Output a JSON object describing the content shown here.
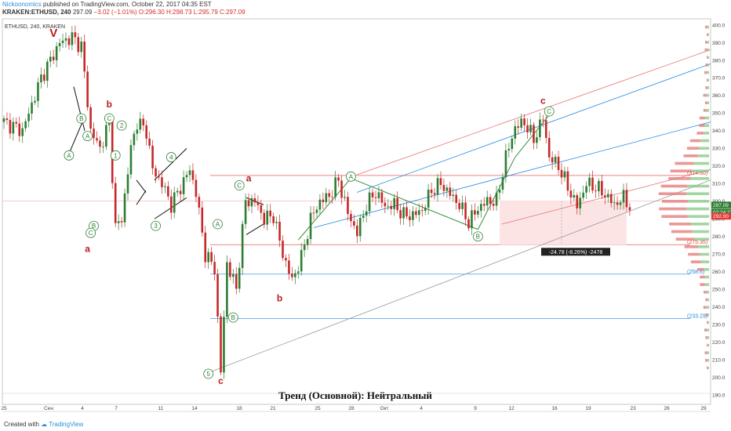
{
  "header": {
    "author": "Nickoonomics",
    "published": "published on TradingView.com, October 22, 2017 04:35 EST",
    "symbol_line": "KRAKEN:ETHUSD, 240",
    "last": "297.09",
    "change": "−3.02 (−1.01%)",
    "ohlc": "O:296.30 H:298.73 L:295.79 C:297.09"
  },
  "chart_label": "ETHUSD, 240, KRAKEN",
  "trend_text": "Тренд (Основной): Нейтральный",
  "footer": {
    "created": "Created with",
    "brand": "TradingView"
  },
  "colors": {
    "up": "#2e7d32",
    "down": "#c62828",
    "wave_label": "#b71c1c",
    "channel_blue": "#1e88e5",
    "channel_red": "#e57373"
  },
  "chart_data": {
    "type": "candlestick",
    "title": "",
    "ylim": [
      190,
      400
    ],
    "y_ticks": [
      190,
      200,
      210,
      220,
      230,
      240,
      250,
      260,
      270,
      280,
      290,
      300,
      310,
      320,
      330,
      340,
      350,
      360,
      370,
      380,
      390,
      400
    ],
    "x_ticks": [
      "25",
      "Сен",
      "4",
      "7",
      "11",
      "14",
      "18",
      "21",
      "25",
      "28",
      "Окт",
      "4",
      "9",
      "12",
      "16",
      "19",
      "23",
      "26",
      "29"
    ],
    "close_path": [
      {
        "i": 0,
        "c": 345
      },
      {
        "i": 6,
        "c": 340
      },
      {
        "i": 12,
        "c": 370
      },
      {
        "i": 18,
        "c": 390
      },
      {
        "i": 22,
        "c": 393
      },
      {
        "i": 25,
        "c": 388
      },
      {
        "i": 28,
        "c": 340
      },
      {
        "i": 31,
        "c": 330
      },
      {
        "i": 34,
        "c": 345
      },
      {
        "i": 36,
        "c": 285
      },
      {
        "i": 38,
        "c": 290
      },
      {
        "i": 41,
        "c": 330
      },
      {
        "i": 43,
        "c": 345
      },
      {
        "i": 46,
        "c": 340
      },
      {
        "i": 48,
        "c": 318
      },
      {
        "i": 51,
        "c": 310
      },
      {
        "i": 54,
        "c": 298
      },
      {
        "i": 57,
        "c": 308
      },
      {
        "i": 60,
        "c": 318
      },
      {
        "i": 62,
        "c": 305
      },
      {
        "i": 65,
        "c": 270
      },
      {
        "i": 68,
        "c": 262
      },
      {
        "i": 70,
        "c": 203
      },
      {
        "i": 72,
        "c": 265
      },
      {
        "i": 75,
        "c": 250
      },
      {
        "i": 78,
        "c": 300
      },
      {
        "i": 81,
        "c": 300
      },
      {
        "i": 84,
        "c": 290
      },
      {
        "i": 87,
        "c": 292
      },
      {
        "i": 90,
        "c": 270
      },
      {
        "i": 93,
        "c": 255
      },
      {
        "i": 96,
        "c": 268
      },
      {
        "i": 99,
        "c": 290
      },
      {
        "i": 102,
        "c": 300
      },
      {
        "i": 105,
        "c": 303
      },
      {
        "i": 108,
        "c": 312
      },
      {
        "i": 111,
        "c": 293
      },
      {
        "i": 114,
        "c": 282
      },
      {
        "i": 117,
        "c": 298
      },
      {
        "i": 120,
        "c": 305
      },
      {
        "i": 123,
        "c": 297
      },
      {
        "i": 126,
        "c": 298
      },
      {
        "i": 129,
        "c": 292
      },
      {
        "i": 132,
        "c": 292
      },
      {
        "i": 135,
        "c": 295
      },
      {
        "i": 138,
        "c": 306
      },
      {
        "i": 141,
        "c": 310
      },
      {
        "i": 144,
        "c": 304
      },
      {
        "i": 147,
        "c": 298
      },
      {
        "i": 150,
        "c": 288
      },
      {
        "i": 153,
        "c": 296
      },
      {
        "i": 156,
        "c": 300
      },
      {
        "i": 159,
        "c": 300
      },
      {
        "i": 162,
        "c": 325
      },
      {
        "i": 165,
        "c": 342
      },
      {
        "i": 168,
        "c": 345
      },
      {
        "i": 171,
        "c": 335
      },
      {
        "i": 174,
        "c": 347
      },
      {
        "i": 176,
        "c": 325
      },
      {
        "i": 179,
        "c": 320
      },
      {
        "i": 182,
        "c": 308
      },
      {
        "i": 185,
        "c": 297
      },
      {
        "i": 188,
        "c": 310
      },
      {
        "i": 191,
        "c": 308
      },
      {
        "i": 194,
        "c": 304
      },
      {
        "i": 197,
        "c": 298
      },
      {
        "i": 200,
        "c": 302
      },
      {
        "i": 202,
        "c": 297
      }
    ],
    "price_lines": [
      {
        "label": "(314.60)",
        "value": 314.6,
        "color": "#e53935"
      },
      {
        "label": "(275.35)",
        "value": 275.35,
        "color": "#e53935"
      },
      {
        "label": "(258.6)",
        "value": 258.6,
        "color": "#1e88e5"
      },
      {
        "label": "(233.29)",
        "value": 233.29,
        "color": "#1e88e5"
      }
    ],
    "price_tags": [
      {
        "text": "297.09",
        "bg": "#2e7d32"
      },
      {
        "text": "02:24:27",
        "bg": "#2e7d32"
      },
      {
        "text": "292.00",
        "bg": "#e53935"
      }
    ],
    "measure_label": "-24.78 (-8.26%) -2478",
    "wave_labels": [
      {
        "t": "V",
        "i": 16,
        "y": 395,
        "style": "big"
      },
      {
        "t": "b",
        "i": 34,
        "y": 355,
        "style": "letter"
      },
      {
        "t": "a",
        "i": 27,
        "y": 273,
        "style": "letter"
      },
      {
        "t": "a",
        "i": 79,
        "y": 313,
        "style": "letter"
      },
      {
        "t": "b",
        "i": 89,
        "y": 245,
        "style": "letter"
      },
      {
        "t": "c",
        "i": 70,
        "y": 198,
        "style": "letter"
      },
      {
        "t": "c",
        "i": 174,
        "y": 357,
        "style": "letter"
      },
      {
        "t": "B",
        "i": 25,
        "y": 347,
        "style": "circle"
      },
      {
        "t": "A",
        "i": 27,
        "y": 337,
        "style": "circle"
      },
      {
        "t": "A",
        "i": 21,
        "y": 326,
        "style": "circle"
      },
      {
        "t": "C",
        "i": 34,
        "y": 347,
        "style": "circle"
      },
      {
        "t": "2",
        "i": 38,
        "y": 343,
        "style": "circle"
      },
      {
        "t": "1",
        "i": 36,
        "y": 326,
        "style": "circle"
      },
      {
        "t": "4",
        "i": 54,
        "y": 325,
        "style": "circle"
      },
      {
        "t": "3",
        "i": 49,
        "y": 286,
        "style": "circle"
      },
      {
        "t": "B",
        "i": 29,
        "y": 286,
        "style": "circle"
      },
      {
        "t": "C",
        "i": 28,
        "y": 282,
        "style": "circle"
      },
      {
        "t": "C",
        "i": 76,
        "y": 309,
        "style": "circle"
      },
      {
        "t": "A",
        "i": 69,
        "y": 287,
        "style": "circle"
      },
      {
        "t": "B",
        "i": 74,
        "y": 234,
        "style": "circle"
      },
      {
        "t": "5",
        "i": 66,
        "y": 202,
        "style": "circle"
      },
      {
        "t": "A",
        "i": 112,
        "y": 314,
        "style": "circle"
      },
      {
        "t": "B",
        "i": 153,
        "y": 280,
        "style": "circle"
      },
      {
        "t": "C",
        "i": 176,
        "y": 351,
        "style": "circle"
      }
    ]
  }
}
